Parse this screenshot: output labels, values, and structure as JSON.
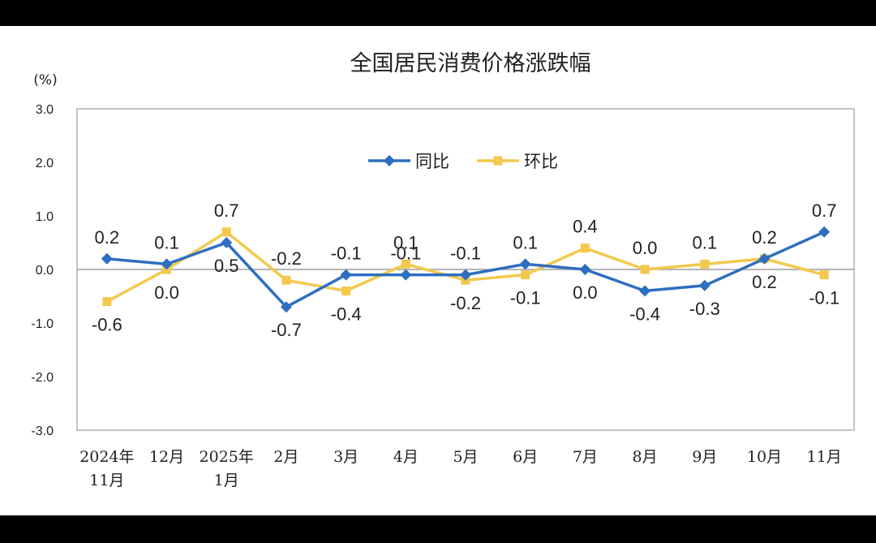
{
  "chart_data": {
    "type": "line",
    "title": "全国居民消费价格涨跌幅",
    "unit_label": "(%)",
    "ylim": [
      -3.0,
      3.0
    ],
    "yticks": [
      "3.0",
      "2.0",
      "1.0",
      "0.0",
      "-1.0",
      "-2.0",
      "-3.0"
    ],
    "categories": [
      [
        "2024年",
        "11月"
      ],
      [
        "12月"
      ],
      [
        "2025年",
        "1月"
      ],
      [
        "2月"
      ],
      [
        "3月"
      ],
      [
        "4月"
      ],
      [
        "5月"
      ],
      [
        "6月"
      ],
      [
        "7月"
      ],
      [
        "8月"
      ],
      [
        "9月"
      ],
      [
        "10月"
      ],
      [
        "11月"
      ]
    ],
    "series": [
      {
        "name": "同比",
        "color": "#2e6ec0",
        "marker": "diamond",
        "values": [
          0.2,
          0.1,
          0.5,
          -0.7,
          -0.1,
          -0.1,
          -0.1,
          0.1,
          0.0,
          -0.4,
          -0.3,
          0.2,
          0.7
        ],
        "labels": [
          "0.2",
          "0.1",
          "0.5",
          "-0.7",
          "-0.1",
          "-0.1",
          "-0.1",
          "0.1",
          "0.0",
          "-0.4",
          "-0.3",
          "0.2",
          "0.7"
        ],
        "label_side": [
          "above",
          "above",
          "below",
          "below",
          "above",
          "above",
          "above",
          "above",
          "below",
          "below",
          "below",
          "above",
          "above"
        ]
      },
      {
        "name": "环比",
        "color": "#f2c94c",
        "marker": "square",
        "values": [
          -0.6,
          0.0,
          0.7,
          -0.2,
          -0.4,
          0.1,
          -0.2,
          -0.1,
          0.4,
          0.0,
          0.1,
          0.2,
          -0.1
        ],
        "labels": [
          "-0.6",
          "0.0",
          "0.7",
          "-0.2",
          "-0.4",
          "0.1",
          "-0.2",
          "-0.1",
          "0.4",
          "0.0",
          "0.1",
          "0.2",
          "-0.1"
        ],
        "label_side": [
          "below",
          "below",
          "above",
          "above",
          "below",
          "above",
          "below",
          "below",
          "above",
          "above",
          "above",
          "below",
          "below"
        ]
      }
    ],
    "axis_color": "#9e9e9e",
    "legend_position": "top-center",
    "grid": false
  }
}
